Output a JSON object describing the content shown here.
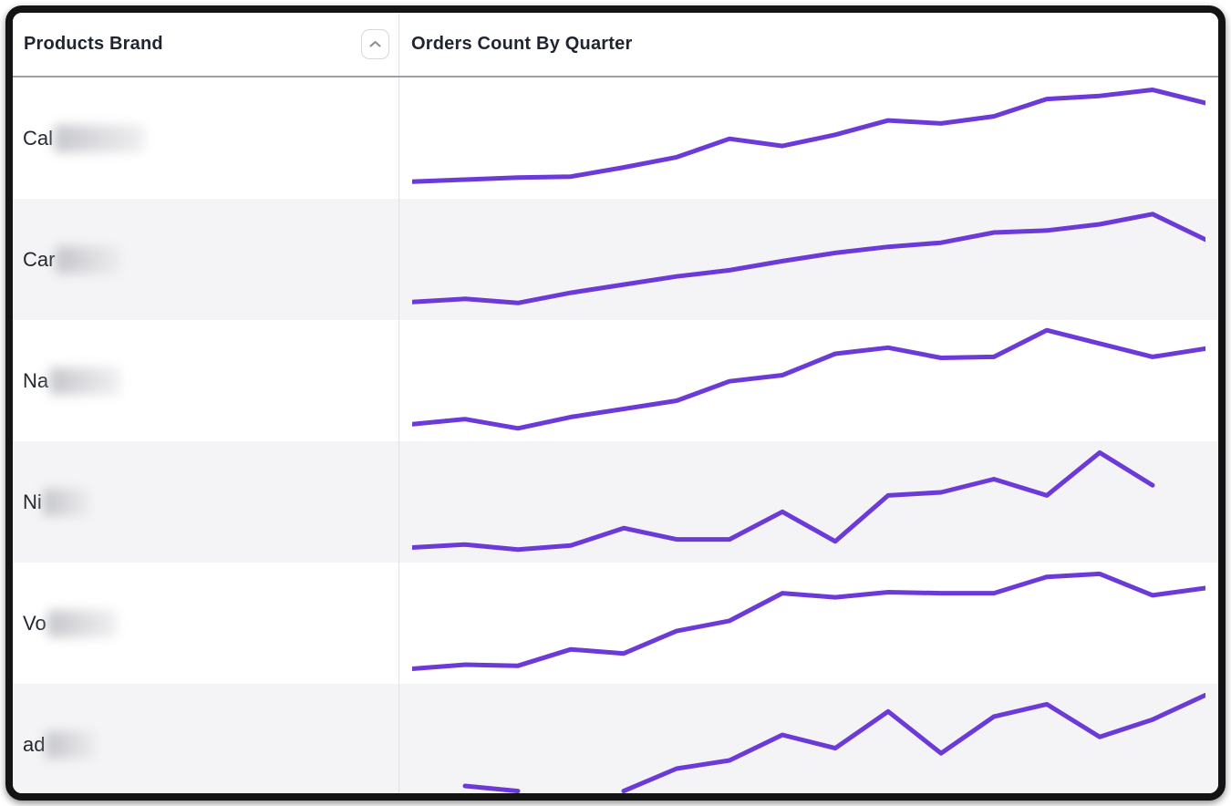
{
  "header": {
    "left_label": "Products Brand",
    "right_label": "Orders Count By Quarter",
    "sort_button": {
      "icon": "chevron-up"
    }
  },
  "colors": {
    "line": "#6b3ad8",
    "row_alt": "#f4f4f6",
    "divider": "#e0e1e4",
    "header_border": "#9aa0a6",
    "text": "#1f2430",
    "frame": "#141414"
  },
  "table": {
    "columns": [
      "Products Brand",
      "Orders Count By Quarter"
    ],
    "rows": [
      {
        "brand_prefix": "Cal",
        "redacted": true,
        "blur_width": 100
      },
      {
        "brand_prefix": "Car",
        "redacted": true,
        "blur_width": 72
      },
      {
        "brand_prefix": "Na",
        "redacted": true,
        "blur_width": 78
      },
      {
        "brand_prefix": "Ni",
        "redacted": true,
        "blur_width": 52
      },
      {
        "brand_prefix": "Vo",
        "redacted": true,
        "blur_width": 76
      },
      {
        "brand_prefix": "ad",
        "redacted": true,
        "blur_width": 56
      }
    ]
  },
  "chart_data": {
    "type": "line",
    "title": "Orders Count By Quarter",
    "x": "quarter-index",
    "points_per_series": 16,
    "ylim": [
      0,
      100
    ],
    "value_note_scale": "normalized 0-100 (no axis labels visible)",
    "grid": false,
    "legend": false,
    "series": [
      {
        "name": "Cal (redacted)",
        "values": [
          6,
          8,
          10,
          11,
          20,
          30,
          48,
          41,
          52,
          66,
          63,
          70,
          87,
          90,
          96,
          83
        ]
      },
      {
        "name": "Car (redacted)",
        "values": [
          7,
          10,
          6,
          16,
          24,
          32,
          38,
          47,
          55,
          61,
          65,
          75,
          77,
          83,
          93,
          68
        ]
      },
      {
        "name": "Na (redacted)",
        "values": [
          6,
          11,
          2,
          13,
          21,
          29,
          48,
          54,
          75,
          81,
          71,
          72,
          98,
          85,
          72,
          80
        ]
      },
      {
        "name": "Ni (redacted)",
        "values": [
          4,
          7,
          2,
          6,
          23,
          12,
          12,
          39,
          10,
          55,
          58,
          71,
          55,
          97,
          65,
          null
        ]
      },
      {
        "name": "Vo (redacted)",
        "values": [
          4,
          8,
          7,
          23,
          19,
          41,
          51,
          78,
          74,
          79,
          78,
          78,
          94,
          97,
          76,
          83
        ]
      },
      {
        "name": "ad (redacted)",
        "values": [
          null,
          8,
          3,
          null,
          3,
          25,
          33,
          58,
          45,
          81,
          40,
          76,
          88,
          56,
          73,
          97
        ]
      }
    ]
  }
}
